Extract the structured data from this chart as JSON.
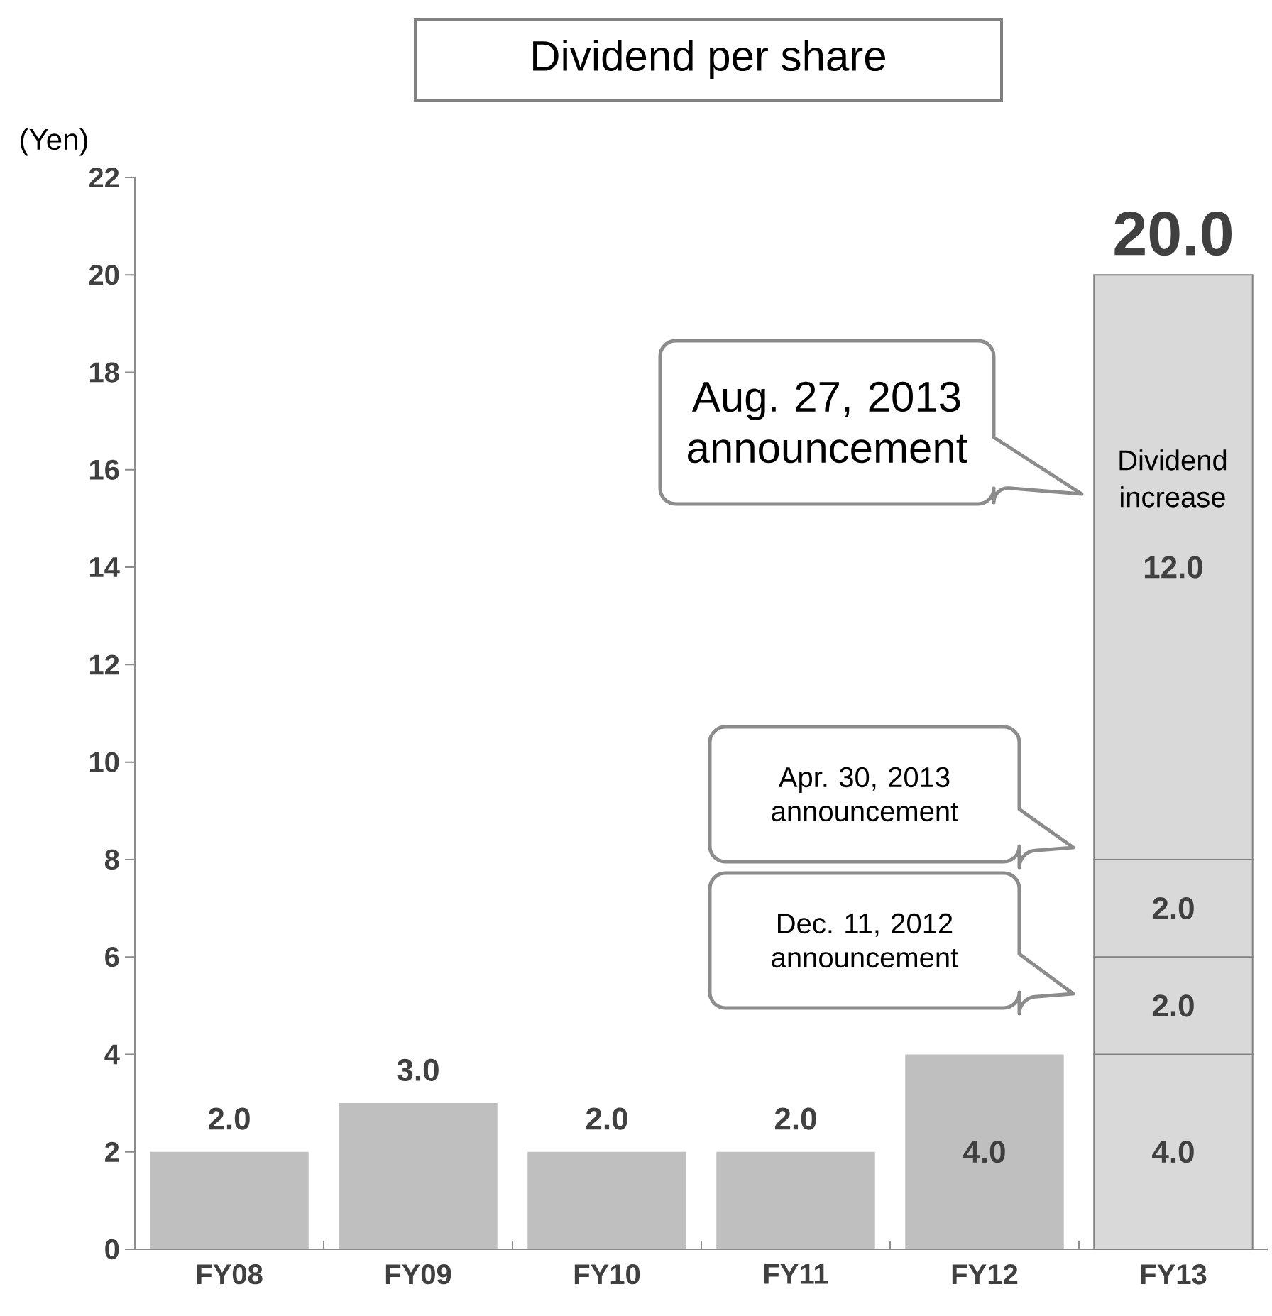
{
  "chart_data": {
    "type": "bar",
    "stacked": true,
    "title": "Dividend per share",
    "ylabel": "(Yen)",
    "categories": [
      "FY08",
      "FY09",
      "FY10",
      "FY11",
      "FY12",
      "FY13"
    ],
    "series": [
      {
        "colors": [
          "#bfbfbf",
          "#bfbfbf",
          "#bfbfbf",
          "#bfbfbf",
          "#bfbfbf",
          "#d9d9d9"
        ],
        "values": [
          2,
          3,
          2,
          2,
          4,
          4
        ],
        "value_labels": [
          "2.0",
          "3.0",
          "2.0",
          "2.0",
          "4.0",
          "4.0"
        ]
      },
      {
        "color": "#d9d9d9",
        "values": [
          null,
          null,
          null,
          null,
          null,
          2
        ],
        "value_labels": [
          null,
          null,
          null,
          null,
          null,
          "2.0"
        ]
      },
      {
        "color": "#d9d9d9",
        "values": [
          null,
          null,
          null,
          null,
          null,
          2
        ],
        "value_labels": [
          null,
          null,
          null,
          null,
          null,
          "2.0"
        ]
      },
      {
        "color": "#d9d9d9",
        "values": [
          null,
          null,
          null,
          null,
          null,
          12
        ],
        "value_labels": [
          null,
          null,
          null,
          null,
          null,
          "12.0"
        ]
      }
    ],
    "totals": [
      null,
      null,
      null,
      null,
      null,
      "20.0"
    ],
    "ylim": [
      0,
      22
    ],
    "yticks": [
      0,
      2,
      4,
      6,
      8,
      10,
      12,
      14,
      16,
      18,
      20,
      22
    ],
    "annotations": [
      "Aug. 27, 2013 announcement",
      "Apr. 30, 2013 announcement",
      "Dec. 11, 2012 announcement",
      "Dividend increase"
    ]
  }
}
